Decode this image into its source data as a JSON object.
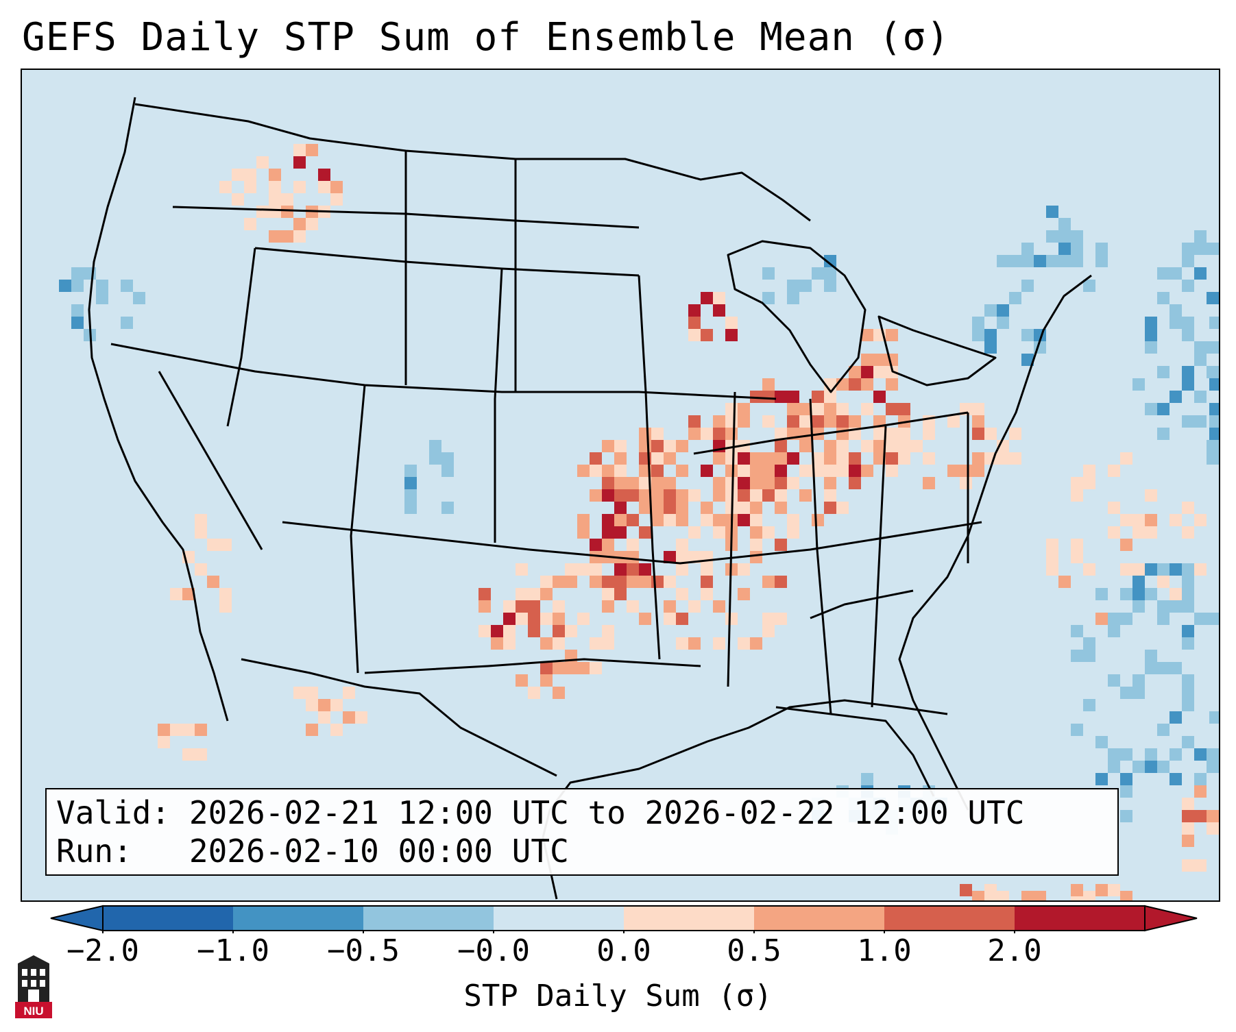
{
  "title": "GEFS Daily STP Sum of Ensemble Mean (σ)",
  "info": {
    "valid_label": "Valid:",
    "valid_value": "2026-02-21 12:00 UTC to 2026-02-22 12:00 UTC",
    "run_label": "Run:",
    "run_value": "2026-02-10 00:00 UTC"
  },
  "colorbar": {
    "label": "STP Daily Sum (σ)",
    "ticks": [
      "−2.0",
      "−1.0",
      "−0.5",
      "−0.0",
      "0.0",
      "0.5",
      "1.0",
      "2.0"
    ],
    "colors": [
      "#2166ac",
      "#4393c3",
      "#92c5de",
      "#d1e5f0",
      "#fddbc7",
      "#f4a582",
      "#d6604d",
      "#b2182b"
    ],
    "under_color": "#2166ac",
    "over_color": "#b2182b"
  },
  "map": {
    "background_color": "#d1e5f0",
    "positive_colors": [
      "#fddbc7",
      "#f4a582",
      "#d6604d",
      "#b2182b"
    ],
    "negative_colors": [
      "#92c5de",
      "#4393c3"
    ],
    "border_color": "#000000"
  },
  "logo": {
    "text": "NIU",
    "color": "#c8102e"
  }
}
